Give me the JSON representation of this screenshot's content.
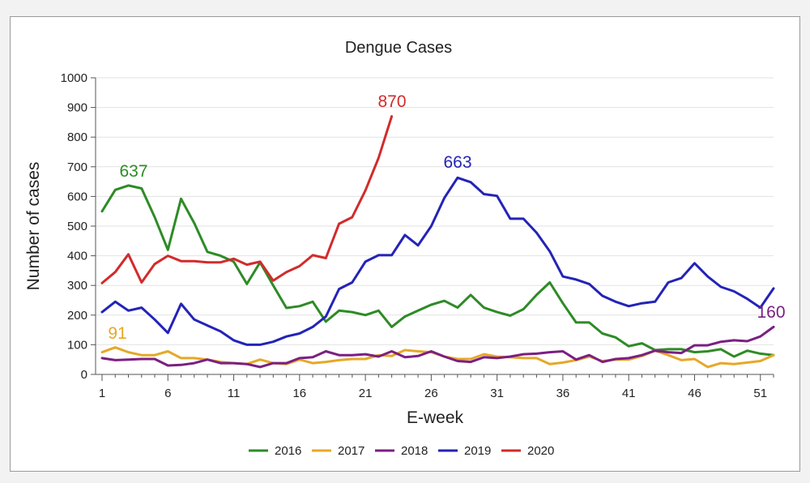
{
  "chart_data": {
    "type": "line",
    "title": "Dengue Cases",
    "xlabel": "E-week",
    "ylabel": "Number of cases",
    "xlim": [
      1,
      52
    ],
    "ylim": [
      0,
      1000
    ],
    "xticks": [
      1,
      6,
      11,
      16,
      21,
      26,
      31,
      36,
      41,
      46,
      51
    ],
    "yticks": [
      0,
      100,
      200,
      300,
      400,
      500,
      600,
      700,
      800,
      900,
      1000
    ],
    "grid": "horizontal",
    "legend_position": "bottom",
    "series": [
      {
        "name": "2016",
        "color": "#2e8b26",
        "x": [
          1,
          2,
          3,
          4,
          5,
          6,
          7,
          8,
          9,
          10,
          11,
          12,
          13,
          14,
          15,
          16,
          17,
          18,
          19,
          20,
          21,
          22,
          23,
          24,
          25,
          26,
          27,
          28,
          29,
          30,
          31,
          32,
          33,
          34,
          35,
          36,
          37,
          38,
          39,
          40,
          41,
          42,
          43,
          44,
          45,
          46,
          47,
          48,
          49,
          50,
          51,
          52
        ],
        "values": [
          550,
          622,
          637,
          627,
          530,
          420,
          592,
          510,
          413,
          400,
          380,
          305,
          378,
          300,
          224,
          230,
          245,
          178,
          215,
          210,
          200,
          215,
          160,
          195,
          215,
          235,
          248,
          225,
          268,
          225,
          210,
          198,
          220,
          268,
          310,
          240,
          175,
          175,
          138,
          125,
          95,
          105,
          82,
          85,
          85,
          75,
          78,
          85,
          60,
          80,
          70,
          65
        ]
      },
      {
        "name": "2017",
        "color": "#e6a828",
        "x": [
          1,
          2,
          3,
          4,
          5,
          6,
          7,
          8,
          9,
          10,
          11,
          12,
          13,
          14,
          15,
          16,
          17,
          18,
          19,
          20,
          21,
          22,
          23,
          24,
          25,
          26,
          27,
          28,
          29,
          30,
          31,
          32,
          33,
          34,
          35,
          36,
          37,
          38,
          39,
          40,
          41,
          42,
          43,
          44,
          45,
          46,
          47,
          48,
          49,
          50,
          51,
          52
        ],
        "values": [
          75,
          91,
          75,
          65,
          65,
          78,
          55,
          55,
          50,
          42,
          38,
          35,
          50,
          38,
          35,
          50,
          38,
          42,
          48,
          52,
          52,
          65,
          62,
          82,
          78,
          75,
          60,
          52,
          52,
          68,
          60,
          58,
          55,
          55,
          35,
          40,
          48,
          60,
          45,
          50,
          50,
          62,
          80,
          65,
          48,
          52,
          25,
          38,
          35,
          40,
          45,
          65
        ]
      },
      {
        "name": "2018",
        "color": "#7b1f82",
        "x": [
          1,
          2,
          3,
          4,
          5,
          6,
          7,
          8,
          9,
          10,
          11,
          12,
          13,
          14,
          15,
          16,
          17,
          18,
          19,
          20,
          21,
          22,
          23,
          24,
          25,
          26,
          27,
          28,
          29,
          30,
          31,
          32,
          33,
          34,
          35,
          36,
          37,
          38,
          39,
          40,
          41,
          42,
          43,
          44,
          45,
          46,
          47,
          48,
          49,
          50,
          51,
          52
        ],
        "values": [
          55,
          48,
          50,
          52,
          52,
          30,
          32,
          38,
          50,
          38,
          38,
          35,
          25,
          38,
          38,
          55,
          58,
          78,
          65,
          65,
          68,
          60,
          78,
          58,
          62,
          78,
          60,
          45,
          42,
          58,
          55,
          60,
          68,
          70,
          75,
          78,
          50,
          65,
          42,
          52,
          55,
          65,
          80,
          75,
          72,
          98,
          98,
          110,
          115,
          112,
          128,
          160
        ]
      },
      {
        "name": "2019",
        "color": "#2323b8",
        "x": [
          1,
          2,
          3,
          4,
          5,
          6,
          7,
          8,
          9,
          10,
          11,
          12,
          13,
          14,
          15,
          16,
          17,
          18,
          19,
          20,
          21,
          22,
          23,
          24,
          25,
          26,
          27,
          28,
          29,
          30,
          31,
          32,
          33,
          34,
          35,
          36,
          37,
          38,
          39,
          40,
          41,
          42,
          43,
          44,
          45,
          46,
          47,
          48,
          49,
          50,
          51,
          52
        ],
        "values": [
          210,
          245,
          215,
          225,
          185,
          140,
          238,
          185,
          165,
          145,
          115,
          100,
          100,
          110,
          128,
          138,
          160,
          195,
          288,
          310,
          380,
          402,
          402,
          470,
          435,
          500,
          595,
          663,
          648,
          608,
          602,
          525,
          525,
          478,
          415,
          330,
          320,
          305,
          265,
          245,
          230,
          240,
          245,
          310,
          325,
          375,
          330,
          295,
          280,
          255,
          225,
          290
        ]
      },
      {
        "name": "2020",
        "color": "#d22b2b",
        "x": [
          1,
          2,
          3,
          4,
          5,
          6,
          7,
          8,
          9,
          10,
          11,
          12,
          13,
          14,
          15,
          16,
          17,
          18,
          19,
          20,
          21,
          22,
          23
        ],
        "values": [
          308,
          345,
          405,
          310,
          372,
          400,
          382,
          382,
          378,
          378,
          390,
          370,
          380,
          316,
          345,
          365,
          402,
          392,
          508,
          530,
          620,
          730,
          870
        ]
      }
    ],
    "annotations": [
      {
        "text": "637",
        "series": "2016",
        "x": 3,
        "y": 637
      },
      {
        "text": "91",
        "series": "2017",
        "x": 2,
        "y": 91
      },
      {
        "text": "870",
        "series": "2020",
        "x": 23,
        "y": 870
      },
      {
        "text": "663",
        "series": "2019",
        "x": 28,
        "y": 663
      },
      {
        "text": "160",
        "series": "2018",
        "x": 52,
        "y": 160
      }
    ]
  }
}
